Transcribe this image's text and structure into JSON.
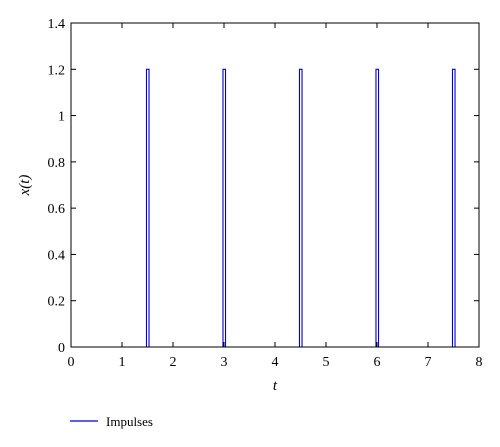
{
  "chart_data": {
    "type": "line",
    "title": "",
    "xlabel": "t",
    "ylabel": "x(t)",
    "xlim": [
      0,
      8
    ],
    "ylim": [
      0,
      1.4
    ],
    "x_ticks": [
      "0",
      "1",
      "2",
      "3",
      "4",
      "5",
      "6",
      "7",
      "8"
    ],
    "y_ticks": [
      "0",
      "0.2",
      "0.4",
      "0.6",
      "0.8",
      "1",
      "1.2",
      "1.4"
    ],
    "x_tick_values": [
      0,
      1,
      2,
      3,
      4,
      5,
      6,
      7,
      8
    ],
    "y_tick_values": [
      0,
      0.2,
      0.4,
      0.6,
      0.8,
      1,
      1.2,
      1.4
    ],
    "grid": false,
    "legend_position": "bottom-left",
    "series": [
      {
        "name": "Impulses",
        "color": "#0000cc",
        "x": [
          0,
          1.48,
          1.48,
          1.53,
          1.53,
          2.98,
          2.98,
          3.03,
          3.03,
          4.48,
          4.48,
          4.53,
          4.53,
          5.98,
          5.98,
          6.03,
          6.03,
          7.48,
          7.48,
          7.53,
          7.53,
          8
        ],
        "y": [
          0,
          0,
          1.2,
          1.2,
          0,
          0,
          1.2,
          1.2,
          0,
          0,
          1.2,
          1.2,
          0,
          0,
          1.2,
          1.2,
          0,
          0,
          1.2,
          1.2,
          0,
          0
        ]
      }
    ]
  }
}
